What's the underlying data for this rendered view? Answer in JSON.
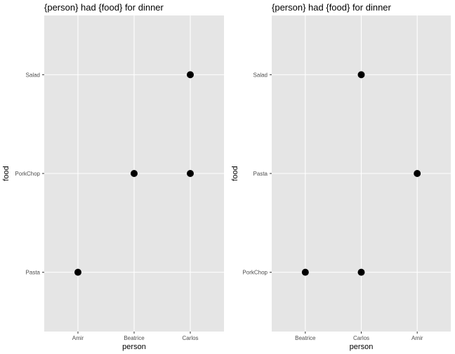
{
  "chart_data": [
    {
      "type": "scatter",
      "title": "{person} had {food} for dinner",
      "xlabel": "person",
      "ylabel": "food",
      "x_categories": [
        "Amir",
        "Beatrice",
        "Carlos"
      ],
      "y_categories": [
        "Pasta",
        "PorkChop",
        "Salad"
      ],
      "points": [
        {
          "x": "Amir",
          "y": "Pasta"
        },
        {
          "x": "Beatrice",
          "y": "PorkChop"
        },
        {
          "x": "Carlos",
          "y": "PorkChop"
        },
        {
          "x": "Carlos",
          "y": "Salad"
        }
      ],
      "grid": true,
      "legend": "none"
    },
    {
      "type": "scatter",
      "title": "{person} had {food} for dinner",
      "xlabel": "person",
      "ylabel": "food",
      "x_categories": [
        "Beatrice",
        "Carlos",
        "Amir"
      ],
      "y_categories": [
        "PorkChop",
        "Pasta",
        "Salad"
      ],
      "points": [
        {
          "x": "Beatrice",
          "y": "PorkChop"
        },
        {
          "x": "Carlos",
          "y": "PorkChop"
        },
        {
          "x": "Carlos",
          "y": "Salad"
        },
        {
          "x": "Amir",
          "y": "Pasta"
        }
      ],
      "grid": true,
      "legend": "none"
    }
  ]
}
